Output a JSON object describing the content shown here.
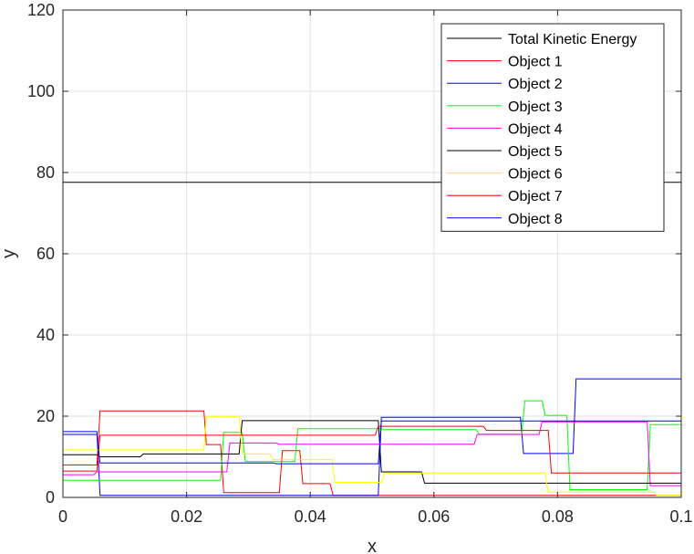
{
  "chart_data": {
    "type": "line",
    "title": "",
    "xlabel": "x",
    "ylabel": "y",
    "xlim": [
      0,
      0.1
    ],
    "ylim": [
      0,
      120
    ],
    "xticks": [
      0,
      0.02,
      0.04,
      0.06,
      0.08,
      0.1
    ],
    "xtick_labels": [
      "0",
      "0.02",
      "0.04",
      "0.06",
      "0.08",
      "0.1"
    ],
    "yticks": [
      0,
      20,
      40,
      60,
      80,
      100,
      120
    ],
    "ytick_labels": [
      "0",
      "20",
      "40",
      "60",
      "80",
      "100",
      "120"
    ],
    "grid": true,
    "legend_position": "top-right",
    "series": [
      {
        "name": "Total Kinetic Energy",
        "color": "#000000",
        "x": [
          0,
          0.1
        ],
        "y": [
          77.6,
          77.6
        ]
      },
      {
        "name": "Object 1",
        "color": "#ff0000",
        "x": [
          0,
          0.0055,
          0.006,
          0.0228,
          0.0232,
          0.0255,
          0.026,
          0.035,
          0.0355,
          0.0383,
          0.0388,
          0.0432,
          0.0437,
          0.1
        ],
        "y": [
          8,
          8,
          21.3,
          21.3,
          13,
          13,
          1.2,
          1.2,
          11.5,
          11.5,
          3.4,
          3.4,
          0.5,
          0.5
        ]
      },
      {
        "name": "Object 2",
        "color": "#0000ff",
        "x": [
          0,
          0.0055,
          0.006,
          0.051,
          0.0515,
          0.074,
          0.0745,
          0.0825,
          0.083,
          0.1
        ],
        "y": [
          16.2,
          16.2,
          0.5,
          0.5,
          19.7,
          19.7,
          10.8,
          10.8,
          29.2,
          29.2
        ]
      },
      {
        "name": "Object 3",
        "color": "#00ff00",
        "x": [
          0,
          0.0255,
          0.026,
          0.029,
          0.0295,
          0.0375,
          0.038,
          0.0515,
          0.052,
          0.0668,
          0.0673,
          0.0742,
          0.0747,
          0.0775,
          0.078,
          0.0815,
          0.082,
          0.0945,
          0.095,
          0.1
        ],
        "y": [
          4.2,
          4.2,
          16,
          16,
          8.8,
          8.8,
          16.9,
          16.9,
          16.7,
          16.7,
          15.6,
          15.6,
          23.8,
          23.8,
          20.2,
          20.2,
          1.9,
          1.9,
          17.9,
          17.9
        ]
      },
      {
        "name": "Object 4",
        "color": "#ff00ff",
        "x": [
          0,
          0.005,
          0.0055,
          0.0265,
          0.027,
          0.0345,
          0.035,
          0.0665,
          0.067,
          0.077,
          0.0775,
          0.0945,
          0.095,
          0.1
        ],
        "y": [
          5.6,
          5.6,
          6.3,
          6.3,
          13.4,
          13.4,
          13.1,
          13.1,
          15.5,
          15.5,
          18.6,
          18.6,
          2.9,
          2.9
        ]
      },
      {
        "name": "Object 5",
        "color": "#000000",
        "x": [
          0,
          0.0055,
          0.006,
          0.0125,
          0.013,
          0.0285,
          0.029,
          0.051,
          0.0515,
          0.058,
          0.0585,
          0.1
        ],
        "y": [
          10.5,
          10.5,
          10,
          10,
          10.7,
          10.7,
          18.9,
          18.9,
          6.3,
          6.3,
          3.5,
          3.5
        ]
      },
      {
        "name": "Object 6",
        "color": "#ffff00",
        "x": [
          0,
          0.0228,
          0.0232,
          0.0285,
          0.029,
          0.0335,
          0.034,
          0.0435,
          0.044,
          0.0515,
          0.052,
          0.078,
          0.0785,
          0.0955,
          0.096,
          0.1
        ],
        "y": [
          11.7,
          11.7,
          19.9,
          19.9,
          10.7,
          10.7,
          9.3,
          9.3,
          3.7,
          3.7,
          6,
          6,
          1.3,
          1.3,
          0.5,
          0.5
        ]
      },
      {
        "name": "Object 7",
        "color": "#ff0000",
        "x": [
          0,
          0.0055,
          0.006,
          0.0505,
          0.051,
          0.068,
          0.0685,
          0.0785,
          0.079,
          0.1
        ],
        "y": [
          6.5,
          6.5,
          15.3,
          15.3,
          17.5,
          17.5,
          16.5,
          16.5,
          6,
          6
        ]
      },
      {
        "name": "Object 8",
        "color": "#0000ff",
        "x": [
          0,
          0.0055,
          0.006,
          0.034,
          0.0345,
          0.051,
          0.0515,
          0.1
        ],
        "y": [
          15.5,
          15.5,
          8.5,
          8.5,
          8.3,
          8.3,
          18.8,
          18.8
        ]
      }
    ]
  }
}
